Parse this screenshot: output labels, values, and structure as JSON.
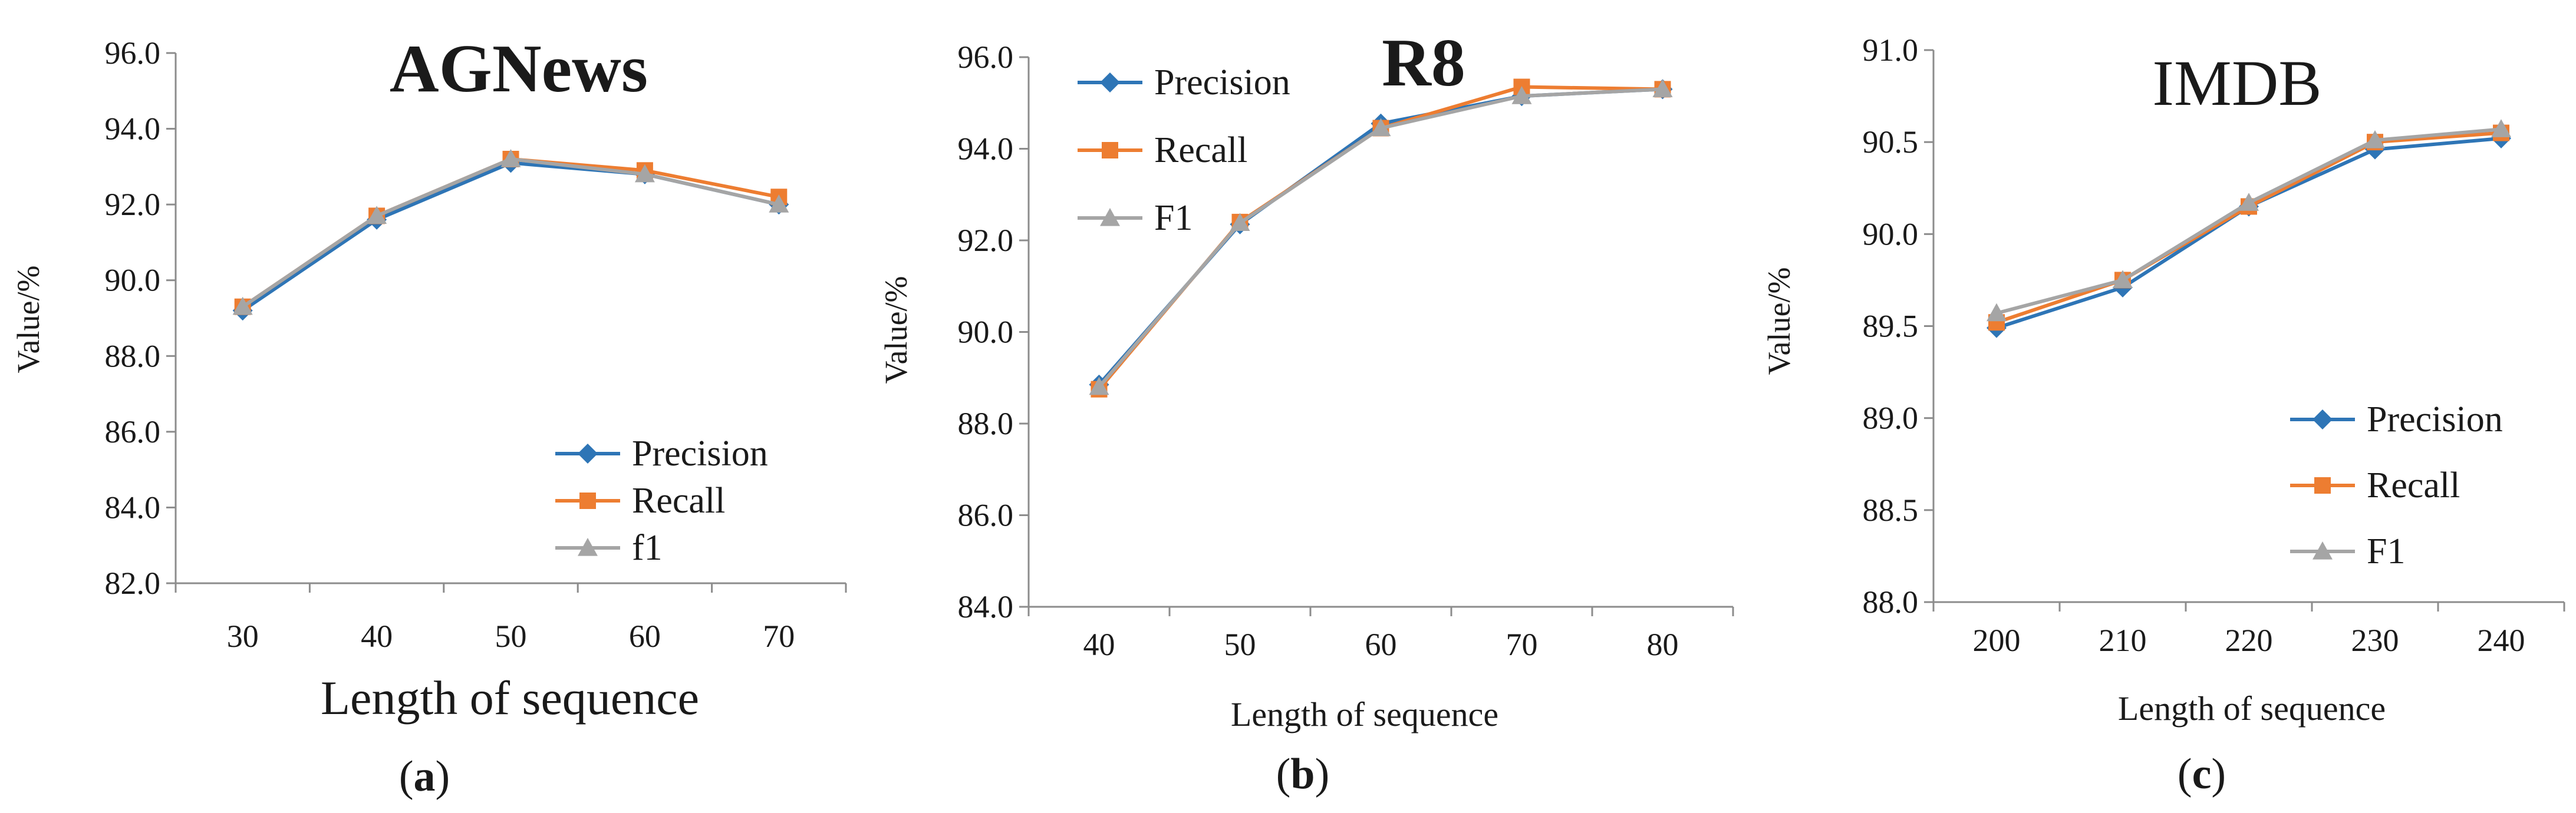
{
  "colors": {
    "precision": "#2e75b6",
    "recall": "#ed7d31",
    "f1": "#a5a5a5",
    "axis": "#8c8c8c"
  },
  "chart_data": [
    {
      "type": "line",
      "panel": "a",
      "title": "AGNews",
      "caption_open": "(",
      "caption_letter": "a",
      "caption_close": ")",
      "xlabel": "Length of sequence",
      "ylabel": "Value/%",
      "categories": [
        "30",
        "40",
        "50",
        "60",
        "70"
      ],
      "ylim": [
        82.0,
        96.0
      ],
      "ytick_step": 2.0,
      "yticks": [
        "82.0",
        "84.0",
        "86.0",
        "88.0",
        "90.0",
        "92.0",
        "94.0",
        "96.0"
      ],
      "legend_position": "bottom-right",
      "series": [
        {
          "name": "Precision",
          "marker": "diamond",
          "color_key": "precision",
          "values": [
            89.2,
            91.6,
            93.1,
            92.8,
            92.0
          ]
        },
        {
          "name": "Recall",
          "marker": "square",
          "color_key": "recall",
          "values": [
            89.3,
            91.7,
            93.2,
            92.9,
            92.2
          ]
        },
        {
          "name": "f1",
          "marker": "triangle",
          "color_key": "f1",
          "values": [
            89.3,
            91.7,
            93.2,
            92.8,
            92.0
          ]
        }
      ]
    },
    {
      "type": "line",
      "panel": "b",
      "title": "R8",
      "caption_open": "(",
      "caption_letter": "b",
      "caption_close": ")",
      "xlabel": "Length of sequence",
      "ylabel": "Value/%",
      "categories": [
        "40",
        "50",
        "60",
        "70",
        "80"
      ],
      "ylim": [
        84.0,
        96.0
      ],
      "ytick_step": 2.0,
      "yticks": [
        "84.0",
        "86.0",
        "88.0",
        "90.0",
        "92.0",
        "94.0",
        "96.0"
      ],
      "legend_position": "top-left",
      "series": [
        {
          "name": "Precision",
          "marker": "diamond",
          "color_key": "precision",
          "values": [
            88.85,
            92.35,
            94.55,
            95.15,
            95.3
          ]
        },
        {
          "name": "Recall",
          "marker": "square",
          "color_key": "recall",
          "values": [
            88.75,
            92.4,
            94.45,
            95.35,
            95.3
          ]
        },
        {
          "name": "F1",
          "marker": "triangle",
          "color_key": "f1",
          "values": [
            88.8,
            92.38,
            94.45,
            95.15,
            95.3
          ]
        }
      ]
    },
    {
      "type": "line",
      "panel": "c",
      "title": "IMDB",
      "caption_open": "(",
      "caption_letter": "c",
      "caption_close": ")",
      "xlabel": "Length of sequence",
      "ylabel": "Value/%",
      "categories": [
        "200",
        "210",
        "220",
        "230",
        "240"
      ],
      "ylim": [
        88.0,
        91.0
      ],
      "ytick_step": 0.5,
      "yticks": [
        "88.0",
        "88.5",
        "89.0",
        "89.5",
        "90.0",
        "90.5",
        "91.0"
      ],
      "legend_position": "bottom-right",
      "series": [
        {
          "name": "Precision",
          "marker": "diamond",
          "color_key": "precision",
          "values": [
            89.49,
            89.71,
            90.15,
            90.46,
            90.52
          ]
        },
        {
          "name": "Recall",
          "marker": "square",
          "color_key": "recall",
          "values": [
            89.52,
            89.75,
            90.15,
            90.5,
            90.55
          ]
        },
        {
          "name": "F1",
          "marker": "triangle",
          "color_key": "f1",
          "values": [
            89.57,
            89.75,
            90.17,
            90.51,
            90.57
          ]
        }
      ]
    }
  ]
}
